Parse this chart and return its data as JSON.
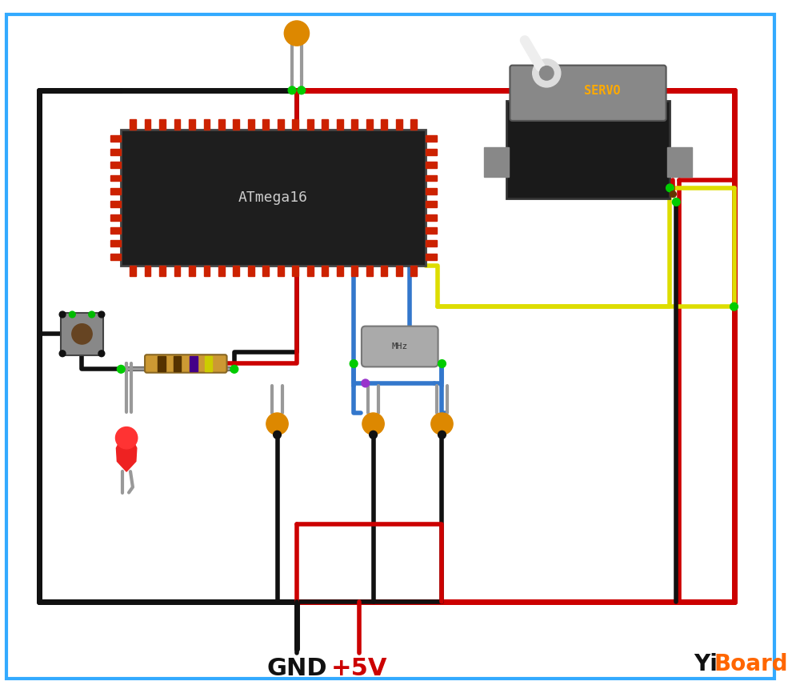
{
  "bg": "#ffffff",
  "border_blue": "#33aaff",
  "wire_red": "#cc0000",
  "wire_black": "#111111",
  "wire_yellow": "#dddd00",
  "wire_blue": "#3377cc",
  "wire_gray": "#999999",
  "pin_red": "#cc2200",
  "chip_color": "#1e1e1e",
  "chip_label": "ATmega16",
  "chip_label_color": "#cccccc",
  "servo_black": "#1a1a1a",
  "servo_gray": "#888888",
  "servo_label": "SERVO",
  "servo_label_color": "#ffaa00",
  "cap_color": "#dd8800",
  "led_color": "#ee2222",
  "res_body": "#cc9933",
  "res_band1": "#553300",
  "res_band2": "#553300",
  "res_band3": "#440088",
  "res_band4": "#cccc00",
  "crystal_fill": "#aaaaaa",
  "dot_green": "#00cc00",
  "dot_brown": "#663300",
  "dot_dark": "#224400",
  "gnd_label": "GND",
  "v5_label": "+5V",
  "yi_color": "#111111",
  "board_color": "#ff6600",
  "yi_text": "Yi",
  "board_text": "Board"
}
